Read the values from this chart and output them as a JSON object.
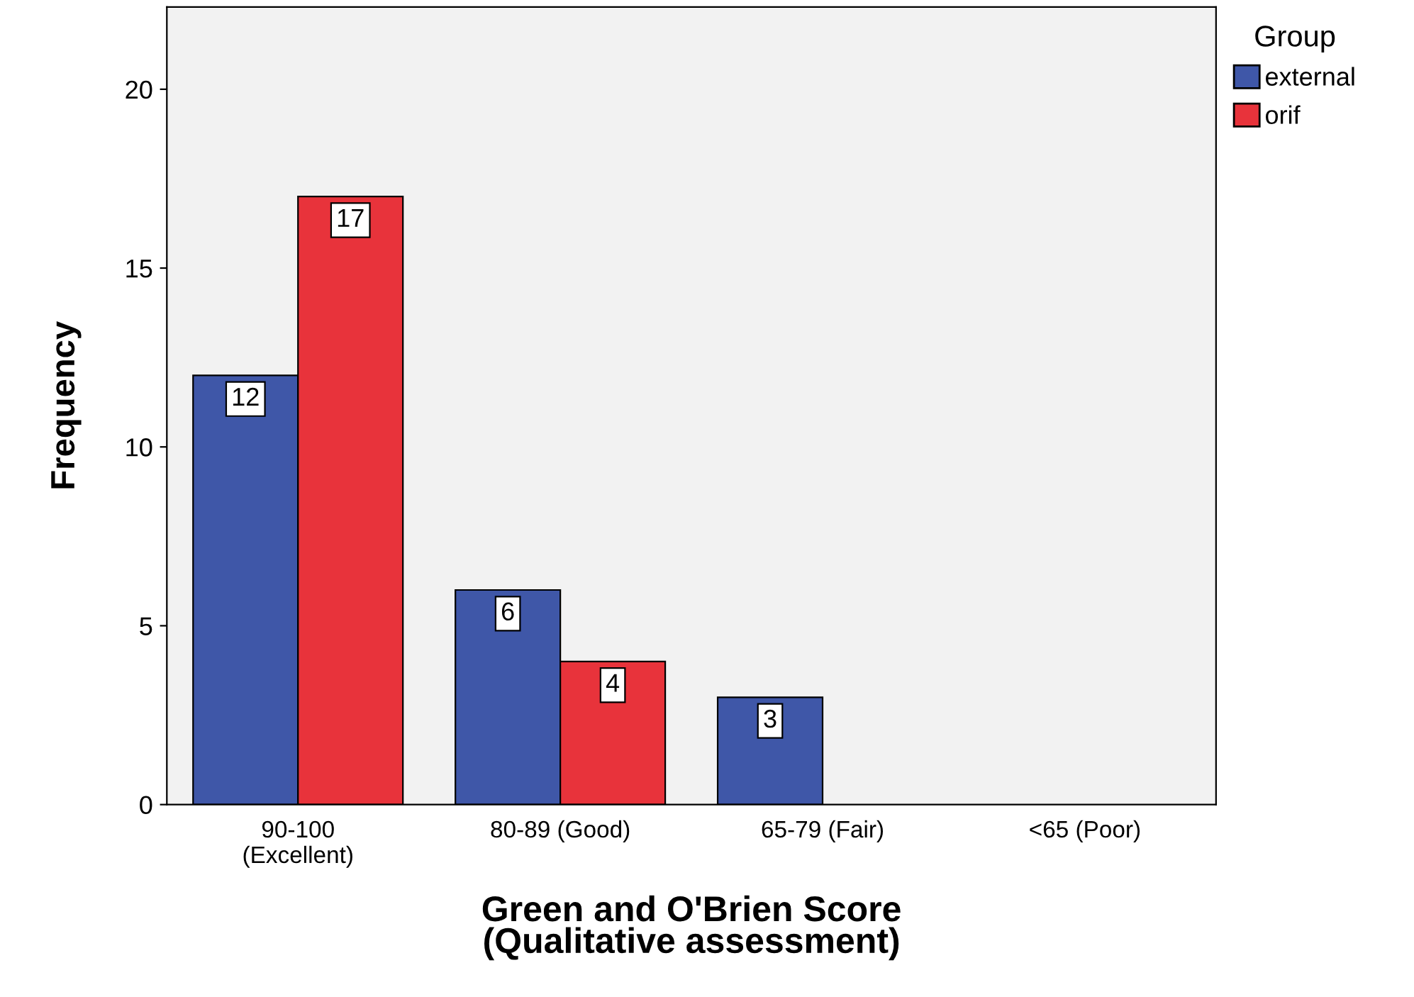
{
  "chart_data": {
    "type": "bar",
    "categories": [
      "90-100\n(Excellent)",
      "80-89 (Good)",
      "65-79 (Fair)",
      "<65 (Poor)"
    ],
    "series": [
      {
        "name": "external",
        "color": "#3f57a8",
        "values": [
          12,
          6,
          3,
          null
        ]
      },
      {
        "name": "orif",
        "color": "#e8333b",
        "values": [
          17,
          4,
          null,
          null
        ]
      }
    ],
    "xlabel": "Green and O'Brien Score\n(Qualitative assessment)",
    "ylabel": "Frequency",
    "legend_title": "Group",
    "legend": "top right",
    "ylim": [
      0,
      22.3
    ],
    "yticks": [
      0,
      5,
      10,
      15,
      20
    ],
    "data_labels": true,
    "grid": false
  }
}
